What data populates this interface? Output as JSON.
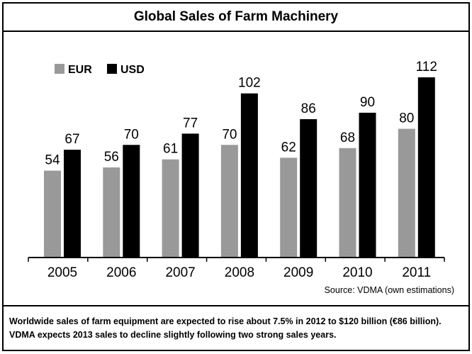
{
  "chart_data": {
    "type": "bar",
    "title": "Global Sales of Farm Machinery",
    "categories": [
      "2005",
      "2006",
      "2007",
      "2008",
      "2009",
      "2010",
      "2011"
    ],
    "series": [
      {
        "name": "EUR",
        "values": [
          54,
          56,
          61,
          70,
          62,
          68,
          80
        ],
        "color": "#999999"
      },
      {
        "name": "USD",
        "values": [
          67,
          70,
          77,
          102,
          86,
          90,
          112
        ],
        "color": "#000000"
      }
    ],
    "ylim": [
      0,
      112
    ],
    "grid": false,
    "legend": "top-left",
    "source": "Source: VDMA (own estimations)",
    "caption": "Worldwide sales of farm equipment are expected to rise about 7.5% in 2012 to $120 billion (€86 billion). VDMA expects 2013 sales to decline slightly following two strong sales years."
  }
}
